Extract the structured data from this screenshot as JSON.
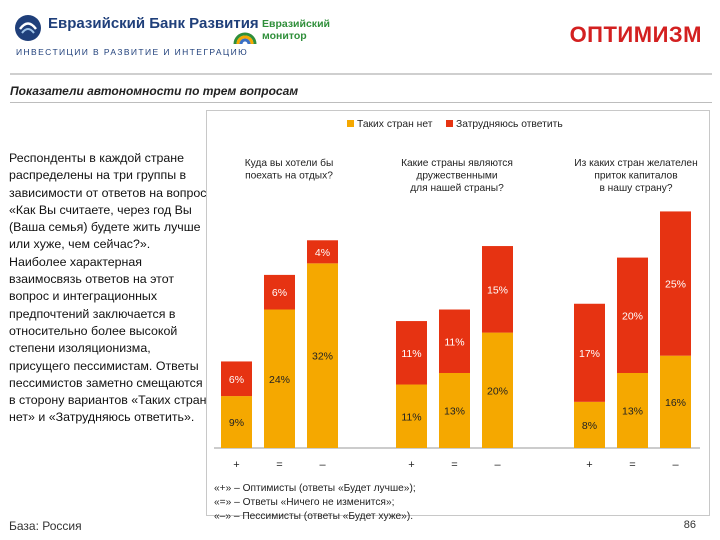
{
  "header": {
    "bank_name": "Евразийский Банк Развития",
    "bank_tagline": "ИНВЕСТИЦИИ В РАЗВИТИЕ И ИНТЕГРАЦИЮ",
    "monitor_name": "Евразийский монитор",
    "title": "ОПТИМИЗМ",
    "subtitle": "Показатели автономности по трем вопросам"
  },
  "body_text": "Респонденты в каждой стране распределены на три группы в зависимости от ответов на вопрос «Как Вы считаете, через год Вы (Ваша семья) будете жить лучше или хуже, чем сейчас?». Наиболее характерная взаимосвязь ответов на этот вопрос и интеграционных предпочтений заключается в относительно более высокой степени изоляционизма, присущего пессимистам. Ответы пессимистов заметно смещаются в сторону вариантов «Таких стран нет» и «Затрудняюсь ответить».",
  "footer": {
    "base": "База: Россия",
    "page_number": "86"
  },
  "notes": [
    "«+» – Оптимисты (ответы «Будет лучше»);",
    "«=» – Ответы «Ничего не изменится»;",
    "«–» – Пессимисты (ответы «Будет хуже»)."
  ],
  "colors": {
    "series_no_countries": "#f5a800",
    "series_hard_to_say": "#e63312",
    "title_red": "#d32020",
    "brand_blue": "#1f3f7a",
    "brand_green": "#2f8f3a"
  },
  "chart_data": {
    "type": "bar",
    "stacked": true,
    "legend_position": "top",
    "series_names": [
      "Таких стран нет",
      "Затрудняюсь ответить"
    ],
    "groups": [
      {
        "question": [
          "Куда вы хотели бы",
          "поехать на отдых?"
        ],
        "categories": [
          "+",
          "=",
          "–"
        ],
        "no_countries": [
          9,
          24,
          32
        ],
        "hard_to_say": [
          6,
          6,
          4
        ]
      },
      {
        "question": [
          "Какие страны являются",
          "дружественными",
          "для нашей страны?"
        ],
        "categories": [
          "+",
          "=",
          "–"
        ],
        "no_countries": [
          11,
          13,
          20
        ],
        "hard_to_say": [
          11,
          11,
          15
        ]
      },
      {
        "question": [
          "Из каких стран желателен",
          "приток капиталов",
          "в нашу страну?"
        ],
        "categories": [
          "+",
          "=",
          "–"
        ],
        "no_countries": [
          8,
          13,
          16
        ],
        "hard_to_say": [
          17,
          20,
          25
        ]
      }
    ]
  }
}
